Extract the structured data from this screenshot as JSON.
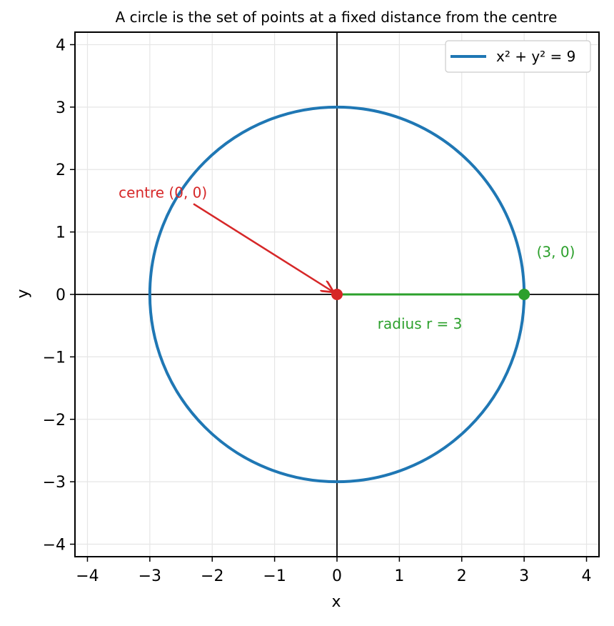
{
  "chart_data": {
    "type": "line",
    "title": "A circle is the set of points at a fixed distance from the centre",
    "xlabel": "x",
    "ylabel": "y",
    "xlim": [
      -4.2,
      4.2
    ],
    "ylim": [
      -4.2,
      4.2
    ],
    "xticks": [
      -4,
      -3,
      -2,
      -1,
      0,
      1,
      2,
      3,
      4
    ],
    "yticks": [
      -4,
      -3,
      -2,
      -1,
      0,
      1,
      2,
      3,
      4
    ],
    "xtick_labels": [
      "−4",
      "−3",
      "−2",
      "−1",
      "0",
      "1",
      "2",
      "3",
      "4"
    ],
    "ytick_labels": [
      "−4",
      "−3",
      "−2",
      "−1",
      "0",
      "1",
      "2",
      "3",
      "4"
    ],
    "grid": true,
    "legend_position": "upper right",
    "series": [
      {
        "name": "x² + y² = 9",
        "kind": "circle",
        "center": [
          0,
          0
        ],
        "radius": 3,
        "color": "#1f77b4"
      }
    ],
    "points": [
      {
        "name": "centre",
        "x": 0,
        "y": 0,
        "color": "#d62728"
      },
      {
        "name": "radius-endpoint",
        "x": 3,
        "y": 0,
        "color": "#2ca02c"
      }
    ],
    "radius_segment": {
      "from": [
        0,
        0
      ],
      "to": [
        3,
        0
      ],
      "color": "#2ca02c"
    },
    "annotations": [
      {
        "text": "centre (0, 0)",
        "x": -3.5,
        "y": 1.55,
        "color": "#d62728",
        "arrow_from": [
          -2.3,
          1.45
        ],
        "arrow_to": [
          0,
          0
        ]
      },
      {
        "text": "(3, 0)",
        "x": 3.2,
        "y": 0.6,
        "color": "#2ca02c"
      },
      {
        "text": "radius r = 3",
        "x": 0.65,
        "y": -0.55,
        "color": "#2ca02c"
      }
    ]
  }
}
